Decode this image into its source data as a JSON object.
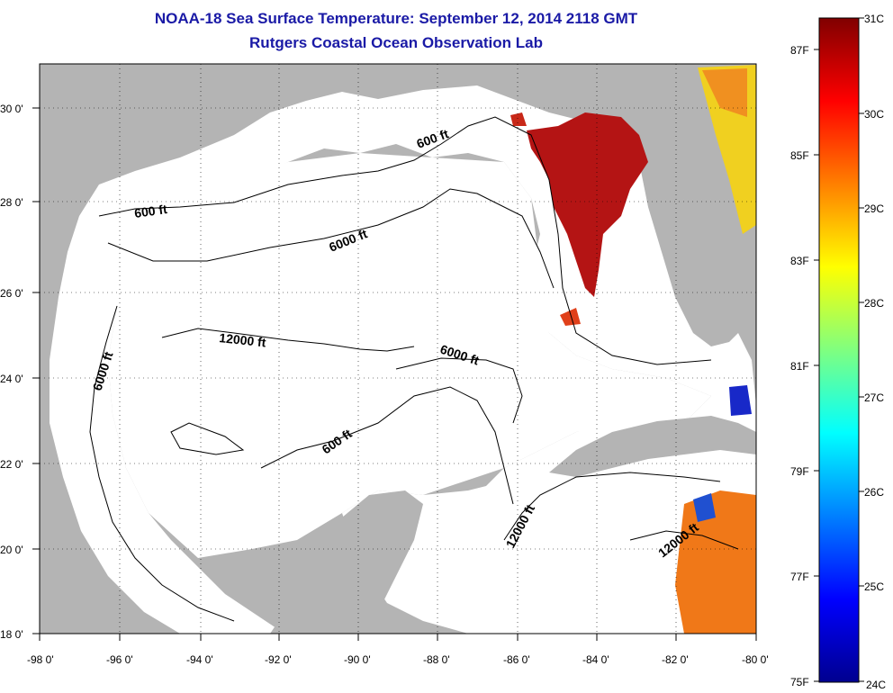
{
  "title": {
    "line1": "NOAA-18 Sea Surface Temperature:  September 12, 2014 2118 GMT",
    "line2": "Rutgers Coastal Ocean Observation Lab"
  },
  "map": {
    "lon_ticks": [
      "-98 0'",
      "-96 0'",
      "-94 0'",
      "-92 0'",
      "-90 0'",
      "-88 0'",
      "-86 0'",
      "-84 0'",
      "-82 0'",
      "-80 0'"
    ],
    "lat_ticks": [
      "30 0'",
      "28 0'",
      "26 0'",
      "24 0'",
      "22 0'",
      "20 0'",
      "18 0'"
    ],
    "contour_labels": [
      "600 ft",
      "600 ft",
      "6000 ft",
      "12000 ft",
      "6000 ft",
      "6000 ft",
      "600 ft",
      "12000 ft",
      "12000 ft"
    ],
    "colors": {
      "land": "#b4b4b4",
      "ocean": "#ffffff",
      "warm_sst": "#b41414"
    }
  },
  "colorbar": {
    "celsius": [
      "31C",
      "30C",
      "29C",
      "28C",
      "27C",
      "26C",
      "25C",
      "24C"
    ],
    "fahrenheit": [
      "87F",
      "85F",
      "83F",
      "81F",
      "79F",
      "77F",
      "75F"
    ]
  }
}
